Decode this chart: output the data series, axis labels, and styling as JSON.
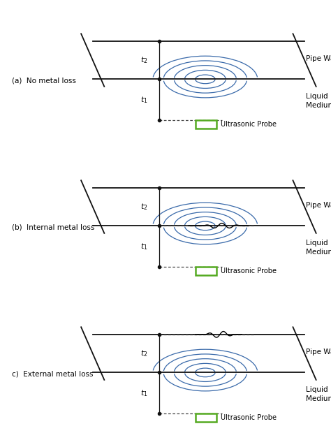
{
  "panel_labels": [
    "(a)  No metal loss",
    "(b)  Internal metal loss",
    "c)  External metal loss"
  ],
  "pipe_wall_label": "Pipe Wall",
  "liquid_medium_label": "Liquid\nMedium",
  "ultrasonic_probe_label": "Ultrasonic Probe",
  "t1_label": "t1",
  "t2_label": "t2",
  "bg_color": "#ffffff",
  "pipe_color": "#111111",
  "wave_color": "#3a6aaa",
  "probe_color": "#55aa22",
  "dotted_color": "#444444",
  "font_size": 8,
  "label_font_size": 7.5
}
